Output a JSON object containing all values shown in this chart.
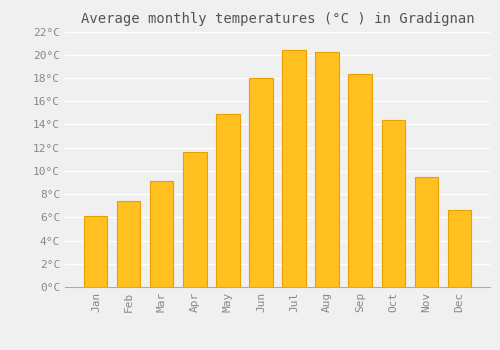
{
  "title": "Average monthly temperatures (°C ) in Gradignan",
  "months": [
    "Jan",
    "Feb",
    "Mar",
    "Apr",
    "May",
    "Jun",
    "Jul",
    "Aug",
    "Sep",
    "Oct",
    "Nov",
    "Dec"
  ],
  "values": [
    6.1,
    7.4,
    9.1,
    11.6,
    14.9,
    18.0,
    20.4,
    20.2,
    18.3,
    14.4,
    9.5,
    6.6
  ],
  "bar_color": "#FFC020",
  "bar_edge_color": "#E8A000",
  "ylim": [
    0,
    22
  ],
  "ytick_step": 2,
  "background_color": "#F0F0F0",
  "grid_color": "#FFFFFF",
  "text_color": "#888888",
  "title_color": "#555555",
  "title_fontsize": 10,
  "tick_fontsize": 8
}
